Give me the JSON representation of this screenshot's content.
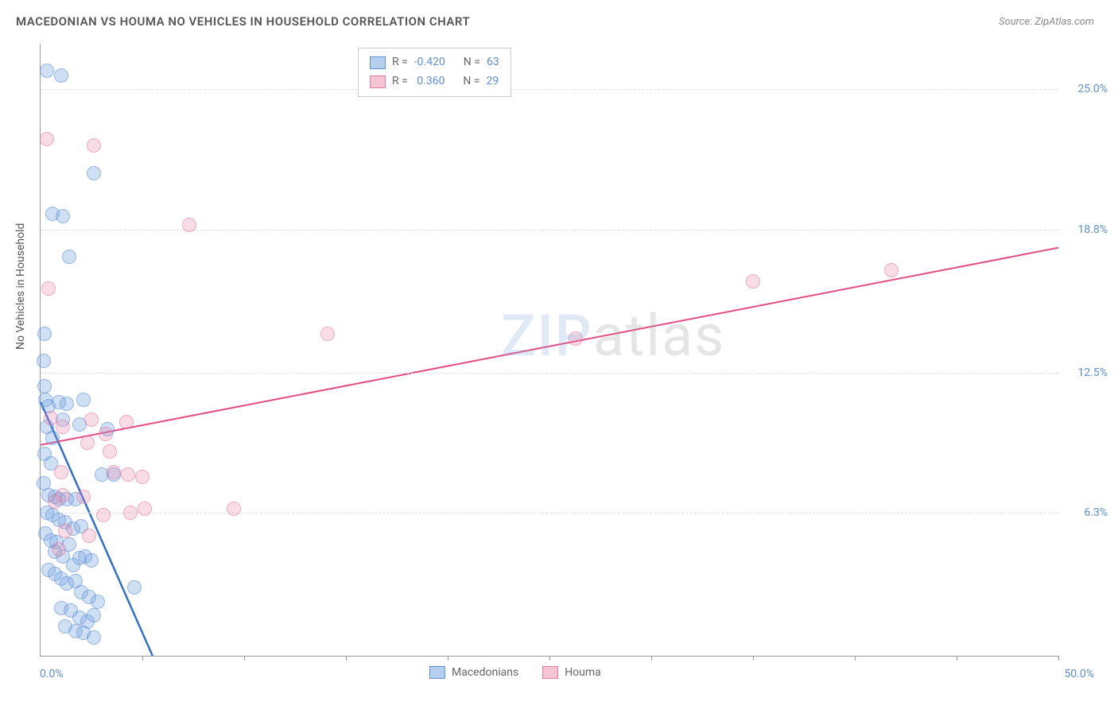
{
  "title": "MACEDONIAN VS HOUMA NO VEHICLES IN HOUSEHOLD CORRELATION CHART",
  "source": "Source: ZipAtlas.com",
  "y_axis_label": "No Vehicles in Household",
  "watermark": {
    "part1": "ZIP",
    "part2": "atlas"
  },
  "chart": {
    "type": "scatter",
    "background_color": "#ffffff",
    "grid_color": "#dddddd",
    "axis_color": "#999999",
    "tick_label_color": "#5b8fd9",
    "xlim": [
      0,
      50
    ],
    "ylim": [
      0,
      27
    ],
    "x_min_label": "0.0%",
    "x_max_label": "50.0%",
    "x_tick_positions": [
      5,
      10,
      15,
      20,
      25,
      30,
      35,
      40,
      45,
      50
    ],
    "y_gridlines": [
      {
        "value": 6.3,
        "label": "6.3%"
      },
      {
        "value": 12.5,
        "label": "12.5%"
      },
      {
        "value": 18.8,
        "label": "18.8%"
      },
      {
        "value": 25.0,
        "label": "25.0%"
      }
    ],
    "series": [
      {
        "name": "Macedonians",
        "fill_color": "rgba(110,160,220,0.5)",
        "stroke_color": "#5b8fd9",
        "marker_radius": 8,
        "R": "-0.420",
        "N": "63",
        "regression_line": {
          "x1": 0,
          "y1": 11.2,
          "x2": 5.5,
          "y2": 0,
          "color": "#2e6fd1",
          "width": 2.5,
          "dashed_extension": true
        },
        "points": [
          [
            0.3,
            25.8
          ],
          [
            1.0,
            25.6
          ],
          [
            0.6,
            19.5
          ],
          [
            1.1,
            19.4
          ],
          [
            2.6,
            21.3
          ],
          [
            1.4,
            17.6
          ],
          [
            0.2,
            14.2
          ],
          [
            0.15,
            13.0
          ],
          [
            0.2,
            11.9
          ],
          [
            0.25,
            11.3
          ],
          [
            0.4,
            11.0
          ],
          [
            0.9,
            11.2
          ],
          [
            1.3,
            11.1
          ],
          [
            2.1,
            11.3
          ],
          [
            0.3,
            10.1
          ],
          [
            0.6,
            9.6
          ],
          [
            0.2,
            8.9
          ],
          [
            0.5,
            8.5
          ],
          [
            0.15,
            7.6
          ],
          [
            0.4,
            7.1
          ],
          [
            0.7,
            7.0
          ],
          [
            0.9,
            6.9
          ],
          [
            1.3,
            6.9
          ],
          [
            1.7,
            6.9
          ],
          [
            3.0,
            8.0
          ],
          [
            3.6,
            8.0
          ],
          [
            0.3,
            6.3
          ],
          [
            0.6,
            6.2
          ],
          [
            0.9,
            6.0
          ],
          [
            1.2,
            5.9
          ],
          [
            1.6,
            5.6
          ],
          [
            2.0,
            5.7
          ],
          [
            0.25,
            5.4
          ],
          [
            0.5,
            5.1
          ],
          [
            0.8,
            5.0
          ],
          [
            1.4,
            4.9
          ],
          [
            1.1,
            4.4
          ],
          [
            1.6,
            4.0
          ],
          [
            1.9,
            4.3
          ],
          [
            2.2,
            4.4
          ],
          [
            2.5,
            4.2
          ],
          [
            0.4,
            3.8
          ],
          [
            0.7,
            3.6
          ],
          [
            1.0,
            3.4
          ],
          [
            1.3,
            3.2
          ],
          [
            1.7,
            3.3
          ],
          [
            2.0,
            2.8
          ],
          [
            2.4,
            2.6
          ],
          [
            2.8,
            2.4
          ],
          [
            4.6,
            3.0
          ],
          [
            1.0,
            2.1
          ],
          [
            1.5,
            2.0
          ],
          [
            1.9,
            1.7
          ],
          [
            2.3,
            1.5
          ],
          [
            2.6,
            1.8
          ],
          [
            1.2,
            1.3
          ],
          [
            1.7,
            1.1
          ],
          [
            2.1,
            1.0
          ],
          [
            2.6,
            0.8
          ],
          [
            0.7,
            4.6
          ],
          [
            1.1,
            10.4
          ],
          [
            1.9,
            10.2
          ],
          [
            3.3,
            10.0
          ]
        ]
      },
      {
        "name": "Houma",
        "fill_color": "rgba(235,140,170,0.45)",
        "stroke_color": "#e87aa0",
        "marker_radius": 8,
        "R": "0.360",
        "N": "29",
        "regression_line": {
          "x1": 0,
          "y1": 9.3,
          "x2": 50,
          "y2": 18.0,
          "color": "#e54b85",
          "width": 2,
          "dashed_extension": false
        },
        "points": [
          [
            0.3,
            22.8
          ],
          [
            2.6,
            22.5
          ],
          [
            7.3,
            19.0
          ],
          [
            0.4,
            16.2
          ],
          [
            14.1,
            14.2
          ],
          [
            26.3,
            14.0
          ],
          [
            35.0,
            16.5
          ],
          [
            41.8,
            17.0
          ],
          [
            0.5,
            10.5
          ],
          [
            1.1,
            10.1
          ],
          [
            2.5,
            10.4
          ],
          [
            3.2,
            9.8
          ],
          [
            4.2,
            10.3
          ],
          [
            2.3,
            9.4
          ],
          [
            3.4,
            9.0
          ],
          [
            1.0,
            8.1
          ],
          [
            3.6,
            8.1
          ],
          [
            4.3,
            8.0
          ],
          [
            5.0,
            7.9
          ],
          [
            1.1,
            7.1
          ],
          [
            2.1,
            7.0
          ],
          [
            0.7,
            6.8
          ],
          [
            3.1,
            6.2
          ],
          [
            4.4,
            6.3
          ],
          [
            5.1,
            6.5
          ],
          [
            9.5,
            6.5
          ],
          [
            1.2,
            5.5
          ],
          [
            2.4,
            5.3
          ],
          [
            0.9,
            4.7
          ]
        ]
      }
    ],
    "legend": {
      "position": "top-center-inside",
      "border_color": "#cccccc",
      "r_label": "R =",
      "n_label": "N ="
    },
    "bottom_legend": {
      "items": [
        "Macedonians",
        "Houma"
      ]
    }
  }
}
